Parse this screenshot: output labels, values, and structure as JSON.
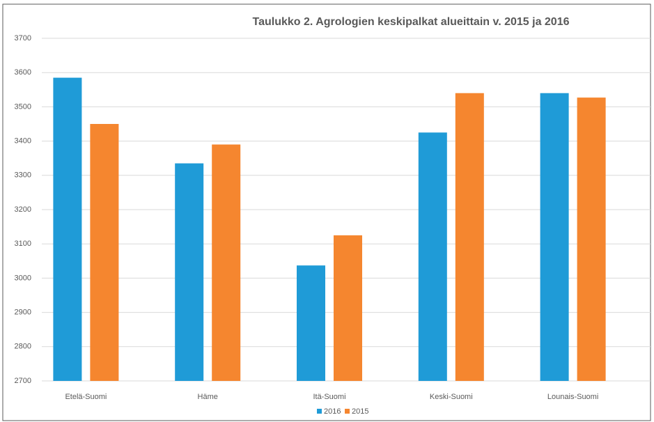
{
  "chart_data": {
    "type": "bar",
    "title": "Taulukko 2. Agrologien keskipalkat alueittain v. 2015 ja 2016",
    "categories": [
      "Etelä-Suomi",
      "Häme",
      "Itä-Suomi",
      "Keski-Suomi",
      "Lounais-Suomi"
    ],
    "series": [
      {
        "name": "2016",
        "color": "#1f9bd7",
        "values": [
          3585,
          3335,
          3037,
          3425,
          3540
        ]
      },
      {
        "name": "2015",
        "color": "#f5862f",
        "values": [
          3450,
          3390,
          3125,
          3540,
          3527
        ]
      }
    ],
    "ylim": [
      2700,
      3700
    ],
    "yticks": [
      2700,
      2800,
      2900,
      3000,
      3100,
      3200,
      3300,
      3400,
      3500,
      3600,
      3700
    ],
    "grid": true,
    "legend": "bottom"
  }
}
